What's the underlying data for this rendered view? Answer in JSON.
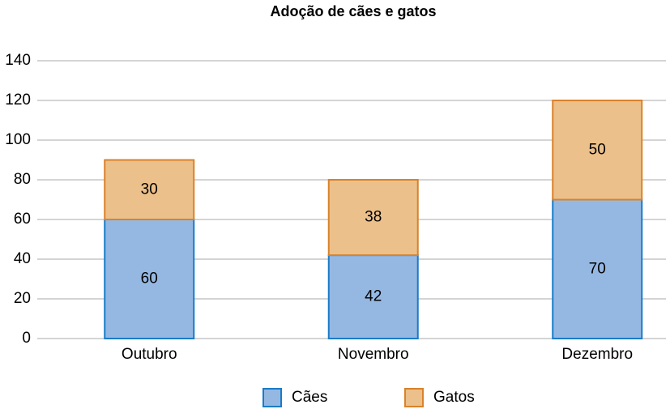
{
  "chart_data": {
    "type": "stacked_bar",
    "title": "Adoção de cães e gatos",
    "categories": [
      "Outubro",
      "Novembro",
      "Dezembro"
    ],
    "series": [
      {
        "name": "Cães",
        "color": "#95b8e3",
        "edge": "#1a7bc8",
        "values": [
          60,
          42,
          70
        ]
      },
      {
        "name": "Gatos",
        "color": "#ecc08a",
        "edge": "#d9822b",
        "values": [
          30,
          38,
          50
        ]
      }
    ],
    "ylim": [
      0,
      140
    ],
    "yticks": [
      0,
      20,
      40,
      60,
      80,
      100,
      120,
      140
    ],
    "grid": true,
    "legend": "bottom"
  }
}
